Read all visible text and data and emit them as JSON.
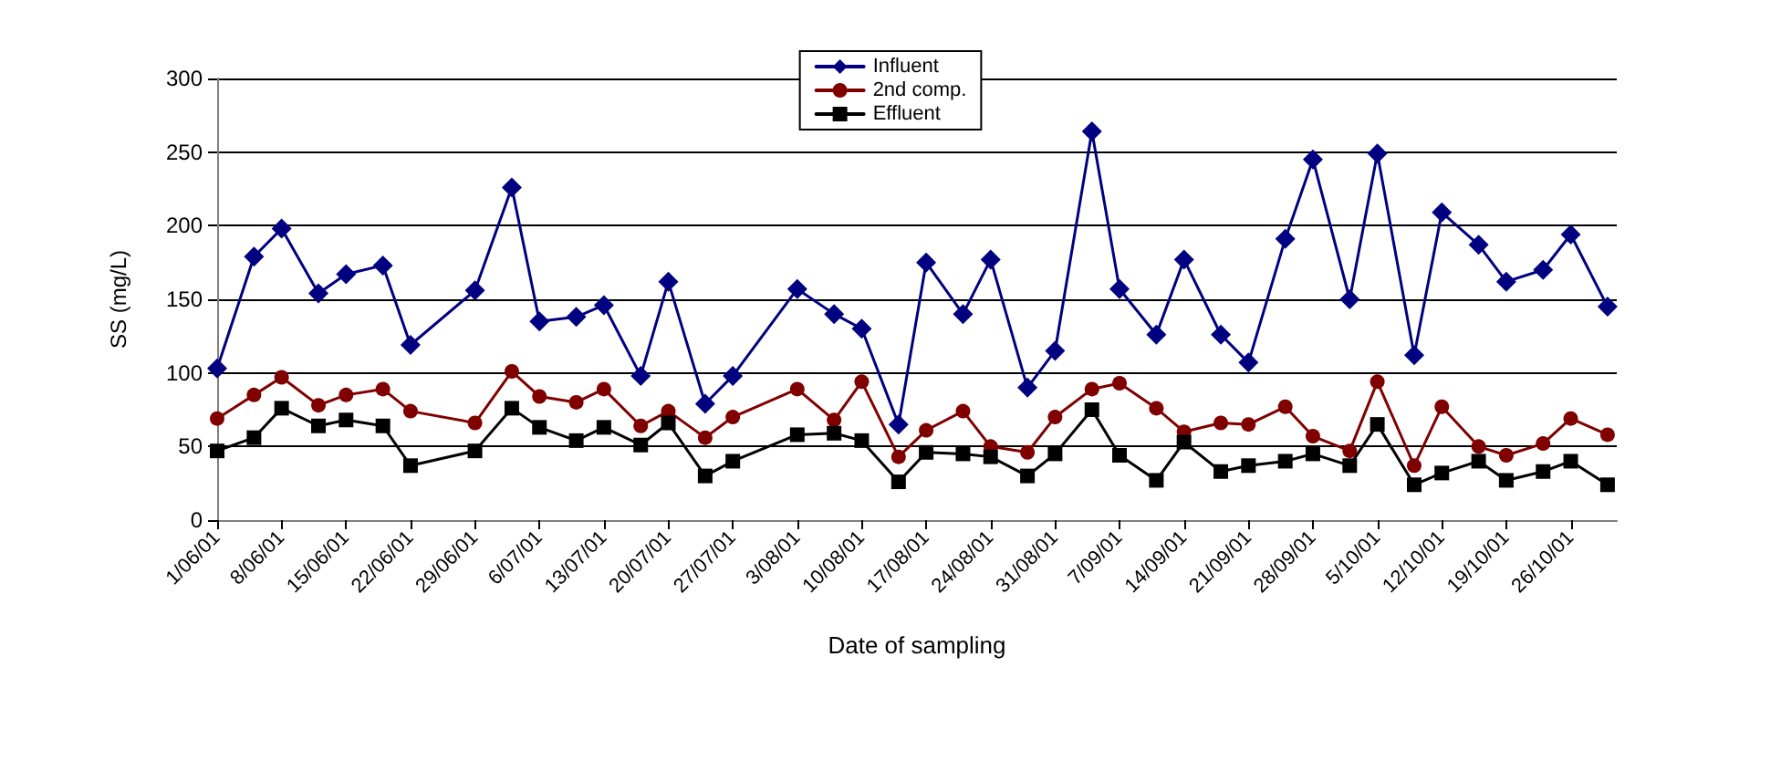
{
  "chart_data": {
    "type": "line",
    "xlabel": "Date of sampling",
    "ylabel": "SS (mg/L)",
    "x": [
      "--06-01",
      "--06-05",
      "--06-08",
      "--06-12",
      "--06-15",
      "--06-19",
      "--06-22",
      "--06-29",
      "--07-03",
      "--07-06",
      "--07-10",
      "--07-13",
      "--07-17",
      "--07-20",
      "--07-24",
      "--07-27",
      "--08-03",
      "--08-07",
      "--08-10",
      "--08-14",
      "--08-17",
      "--08-21",
      "--08-24",
      "--08-28",
      "--08-31",
      "--09-04",
      "--09-07",
      "--09-11",
      "--09-14",
      "--09-18",
      "--09-21",
      "--09-25",
      "--09-28",
      "--10-02",
      "--10-05",
      "--10-09",
      "--10-12",
      "--10-16",
      "--10-19",
      "--10-23",
      "--10-26",
      "--10-30"
    ],
    "series": [
      {
        "name": "Influent",
        "color": "#000080",
        "marker": "diamond",
        "values": [
          103,
          179,
          198,
          154,
          167,
          173,
          119,
          156,
          226,
          135,
          138,
          146,
          98,
          162,
          79,
          98,
          157,
          140,
          130,
          65,
          175,
          140,
          177,
          90,
          115,
          264,
          157,
          126,
          177,
          126,
          107,
          191,
          245,
          150,
          249,
          112,
          209,
          187,
          162,
          170,
          194,
          145
        ]
      },
      {
        "name": "2nd comp.",
        "color": "#800000",
        "marker": "circle",
        "values": [
          69,
          85,
          97,
          78,
          85,
          89,
          74,
          66,
          101,
          84,
          80,
          89,
          64,
          74,
          56,
          70,
          89,
          68,
          94,
          43,
          61,
          74,
          50,
          46,
          70,
          89,
          93,
          76,
          60,
          66,
          65,
          77,
          57,
          47,
          94,
          37,
          77,
          50,
          44,
          52,
          69,
          58
        ]
      },
      {
        "name": "Effluent",
        "color": "#000000",
        "marker": "square",
        "values": [
          47,
          56,
          76,
          64,
          68,
          64,
          37,
          47,
          76,
          63,
          54,
          63,
          51,
          66,
          30,
          40,
          58,
          59,
          54,
          26,
          46,
          45,
          43,
          30,
          45,
          75,
          44,
          27,
          53,
          33,
          37,
          40,
          45,
          37,
          65,
          24,
          32,
          40,
          27,
          33,
          40,
          24
        ]
      }
    ],
    "xlim": [
      "--06-01",
      "--10-31"
    ],
    "xticks": [
      {
        "value": "--06-01",
        "label": "1/06/01"
      },
      {
        "value": "--06-08",
        "label": "8/06/01"
      },
      {
        "value": "--06-15",
        "label": "15/06/01"
      },
      {
        "value": "--06-22",
        "label": "22/06/01"
      },
      {
        "value": "--06-29",
        "label": "29/06/01"
      },
      {
        "value": "--07-06",
        "label": "6/07/01"
      },
      {
        "value": "--07-13",
        "label": "13/07/01"
      },
      {
        "value": "--07-20",
        "label": "20/07/01"
      },
      {
        "value": "--07-27",
        "label": "27/07/01"
      },
      {
        "value": "--08-03",
        "label": "3/08/01"
      },
      {
        "value": "--08-10",
        "label": "10/08/01"
      },
      {
        "value": "--08-17",
        "label": "17/08/01"
      },
      {
        "value": "--08-24",
        "label": "24/08/01"
      },
      {
        "value": "--08-31",
        "label": "31/08/01"
      },
      {
        "value": "--09-07",
        "label": "7/09/01"
      },
      {
        "value": "--09-14",
        "label": "14/09/01"
      },
      {
        "value": "--09-21",
        "label": "21/09/01"
      },
      {
        "value": "--09-28",
        "label": "28/09/01"
      },
      {
        "value": "--10-05",
        "label": "5/10/01"
      },
      {
        "value": "--10-12",
        "label": "12/10/01"
      },
      {
        "value": "--10-19",
        "label": "19/10/01"
      },
      {
        "value": "--10-26",
        "label": "26/10/01"
      }
    ],
    "ylim": [
      0,
      300
    ],
    "yticks": [
      0,
      50,
      100,
      150,
      200,
      250,
      300
    ],
    "grid": "y",
    "legend": "top",
    "line_style": "solid"
  }
}
